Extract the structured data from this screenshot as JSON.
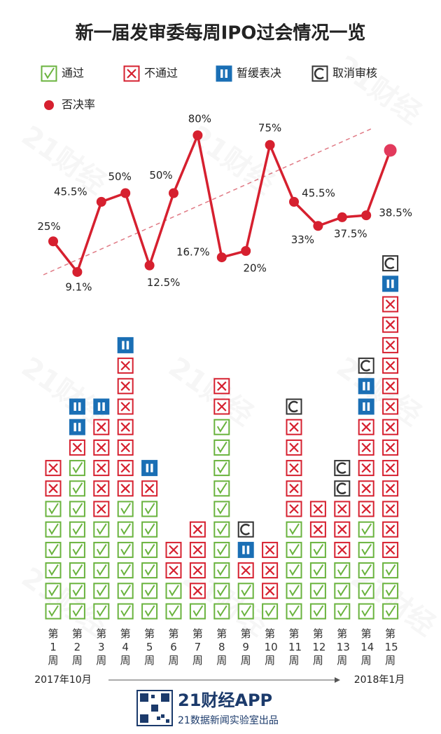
{
  "title": "新一届发审委每周IPO过会情况一览",
  "watermark": "21财经",
  "footer": {
    "brand": "21财经APP",
    "credit": "21数据新闻实验室出品"
  },
  "chart_data": [
    {
      "type": "line",
      "name": "否决率",
      "color": "#d6202f",
      "highlight_color": "#e23a5c",
      "values": [
        25,
        9.1,
        45.5,
        50,
        12.5,
        50,
        80,
        16.7,
        20,
        75,
        45.5,
        33,
        37.5,
        38.5,
        72.2
      ],
      "value_labels": [
        "25%",
        "9.1%",
        "45.5%",
        "50%",
        "12.5%",
        "50%",
        "80%",
        "16.7%",
        "20%",
        "75%",
        "45.5%",
        "33%",
        "37.5%",
        "38.5%",
        null
      ]
    },
    {
      "type": "bar",
      "stacked": true,
      "categories": [
        "第1周",
        "第2周",
        "第3周",
        "第4周",
        "第5周",
        "第6周",
        "第7周",
        "第8周",
        "第9周",
        "第10周",
        "第11周",
        "第12周",
        "第13周",
        "第14周",
        "第15周"
      ],
      "series": [
        {
          "name": "通过",
          "color": "#6ab33e",
          "values": [
            6,
            8,
            5,
            6,
            6,
            2,
            1,
            10,
            2,
            1,
            5,
            4,
            3,
            5,
            3
          ]
        },
        {
          "name": "不通过",
          "color": "#d6202f",
          "values": [
            2,
            1,
            5,
            7,
            1,
            2,
            4,
            2,
            1,
            3,
            5,
            2,
            3,
            5,
            13
          ]
        },
        {
          "name": "暂缓表决",
          "color": "#1a6fb5",
          "values": [
            0,
            2,
            1,
            1,
            1,
            0,
            0,
            0,
            1,
            0,
            0,
            0,
            0,
            2,
            1
          ]
        },
        {
          "name": "取消审核",
          "color": "#333333",
          "values": [
            0,
            0,
            0,
            0,
            0,
            0,
            0,
            0,
            1,
            0,
            1,
            0,
            2,
            1,
            1
          ]
        }
      ],
      "annotations": [
        "2017年10月",
        "2018年1月"
      ]
    }
  ]
}
